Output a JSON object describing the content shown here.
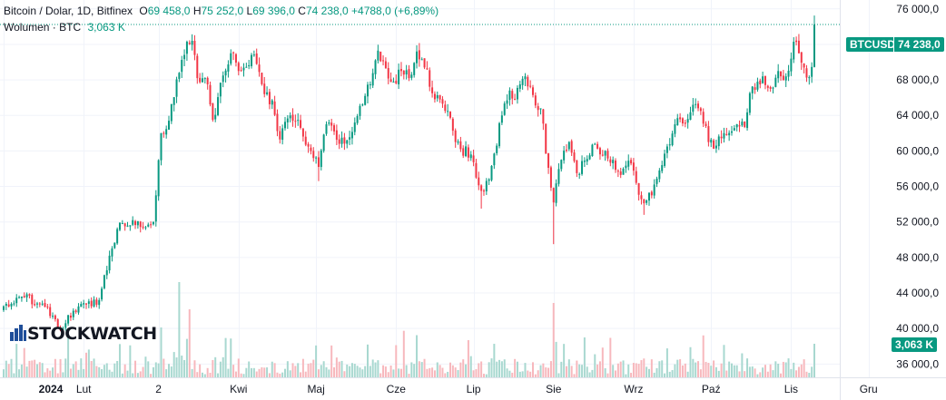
{
  "header": {
    "title": "Bitcoin / Dolar, 1D, Bitfinex",
    "open_label": "O",
    "open_value": "69 458,0",
    "high_label": "H",
    "high_value": "75 252,0",
    "low_label": "L",
    "low_value": "69 396,0",
    "close_label": "C",
    "close_value": "74 238,0",
    "change": "+4788,0 (+6,89%)",
    "volume_label": "Wolumen · BTC",
    "volume_value": "3,063 K"
  },
  "badges": {
    "symbol": "BTCUSD",
    "price": "74 238,0",
    "volume": "3,063 K"
  },
  "logo": {
    "text": "STOCKWATCH"
  },
  "colors": {
    "up": "#089981",
    "down": "#f23645",
    "up_volume": "#a8d8d0",
    "down_volume": "#f7b8bd",
    "grid": "#f0f3fa",
    "axis_text": "#131722",
    "price_line": "#089981"
  },
  "chart_data": {
    "type": "candlestick",
    "symbol": "BTCUSD",
    "interval": "1D",
    "exchange": "Bitfinex",
    "y_axis": {
      "min": 34500,
      "max": 77000,
      "ticks": [
        "76 000,0",
        "72 000,0",
        "68 000,0",
        "64 000,0",
        "60 000,0",
        "56 000,0",
        "52 000,0",
        "48 000,0",
        "44 000,0",
        "40 000,0",
        "36 000,0"
      ],
      "tick_values": [
        76000,
        72000,
        68000,
        64000,
        60000,
        56000,
        52000,
        48000,
        44000,
        40000,
        36000
      ]
    },
    "x_axis": {
      "labels": [
        "2024",
        "Lut",
        "2",
        "Kwi",
        "Maj",
        "Cze",
        "Lip",
        "Sie",
        "Wrz",
        "Paź",
        "Lis",
        "Gru"
      ],
      "label_day_index": [
        0,
        31,
        60,
        91,
        121,
        152,
        182,
        213,
        244,
        274,
        305,
        335
      ],
      "bold": [
        "2024"
      ]
    },
    "grid": true,
    "last_close": 74238,
    "keypoints": [
      [
        0,
        42500
      ],
      [
        8,
        43500
      ],
      [
        15,
        42800
      ],
      [
        22,
        39800
      ],
      [
        27,
        42000
      ],
      [
        32,
        42700
      ],
      [
        37,
        43200
      ],
      [
        41,
        48200
      ],
      [
        45,
        51900
      ],
      [
        50,
        52200
      ],
      [
        55,
        51400
      ],
      [
        58,
        52000
      ],
      [
        61,
        62000
      ],
      [
        64,
        63400
      ],
      [
        68,
        68800
      ],
      [
        71,
        72300
      ],
      [
        73,
        72400
      ],
      [
        75,
        68200
      ],
      [
        79,
        67500
      ],
      [
        81,
        63500
      ],
      [
        85,
        68500
      ],
      [
        88,
        71000
      ],
      [
        92,
        69000
      ],
      [
        96,
        70800
      ],
      [
        98,
        69800
      ],
      [
        101,
        66400
      ],
      [
        104,
        65700
      ],
      [
        107,
        61300
      ],
      [
        111,
        64000
      ],
      [
        114,
        63500
      ],
      [
        117,
        60700
      ],
      [
        120,
        59200
      ],
      [
        122,
        58200
      ],
      [
        125,
        63000
      ],
      [
        128,
        62200
      ],
      [
        130,
        60800
      ],
      [
        133,
        61200
      ],
      [
        136,
        63200
      ],
      [
        140,
        66200
      ],
      [
        142,
        67500
      ],
      [
        145,
        71300
      ],
      [
        148,
        69300
      ],
      [
        151,
        67800
      ],
      [
        154,
        69000
      ],
      [
        157,
        68200
      ],
      [
        160,
        71200
      ],
      [
        163,
        69400
      ],
      [
        166,
        66500
      ],
      [
        169,
        65800
      ],
      [
        172,
        64500
      ],
      [
        175,
        61000
      ],
      [
        177,
        60200
      ],
      [
        181,
        59600
      ],
      [
        183,
        57000
      ],
      [
        185,
        55500
      ],
      [
        188,
        56800
      ],
      [
        190,
        59700
      ],
      [
        193,
        64000
      ],
      [
        196,
        66800
      ],
      [
        198,
        65800
      ],
      [
        200,
        67500
      ],
      [
        202,
        68400
      ],
      [
        205,
        66300
      ],
      [
        208,
        64800
      ],
      [
        211,
        58100
      ],
      [
        213,
        54200
      ],
      [
        216,
        59000
      ],
      [
        219,
        61000
      ],
      [
        222,
        57500
      ],
      [
        226,
        59100
      ],
      [
        229,
        60800
      ],
      [
        232,
        59500
      ],
      [
        236,
        59000
      ],
      [
        239,
        57300
      ],
      [
        242,
        58900
      ],
      [
        245,
        56400
      ],
      [
        248,
        54100
      ],
      [
        251,
        55000
      ],
      [
        254,
        57800
      ],
      [
        257,
        60500
      ],
      [
        260,
        63000
      ],
      [
        263,
        63100
      ],
      [
        265,
        63600
      ],
      [
        267,
        65200
      ],
      [
        270,
        64500
      ],
      [
        273,
        61000
      ],
      [
        276,
        60600
      ],
      [
        279,
        62000
      ],
      [
        282,
        62200
      ],
      [
        284,
        63000
      ],
      [
        287,
        62700
      ],
      [
        289,
        66500
      ],
      [
        292,
        67800
      ],
      [
        294,
        68400
      ],
      [
        297,
        67000
      ],
      [
        300,
        69000
      ],
      [
        303,
        68400
      ],
      [
        306,
        72300
      ],
      [
        308,
        71000
      ],
      [
        310,
        69400
      ],
      [
        312,
        68300
      ],
      [
        313,
        69458
      ],
      [
        314,
        74238
      ]
    ]
  }
}
